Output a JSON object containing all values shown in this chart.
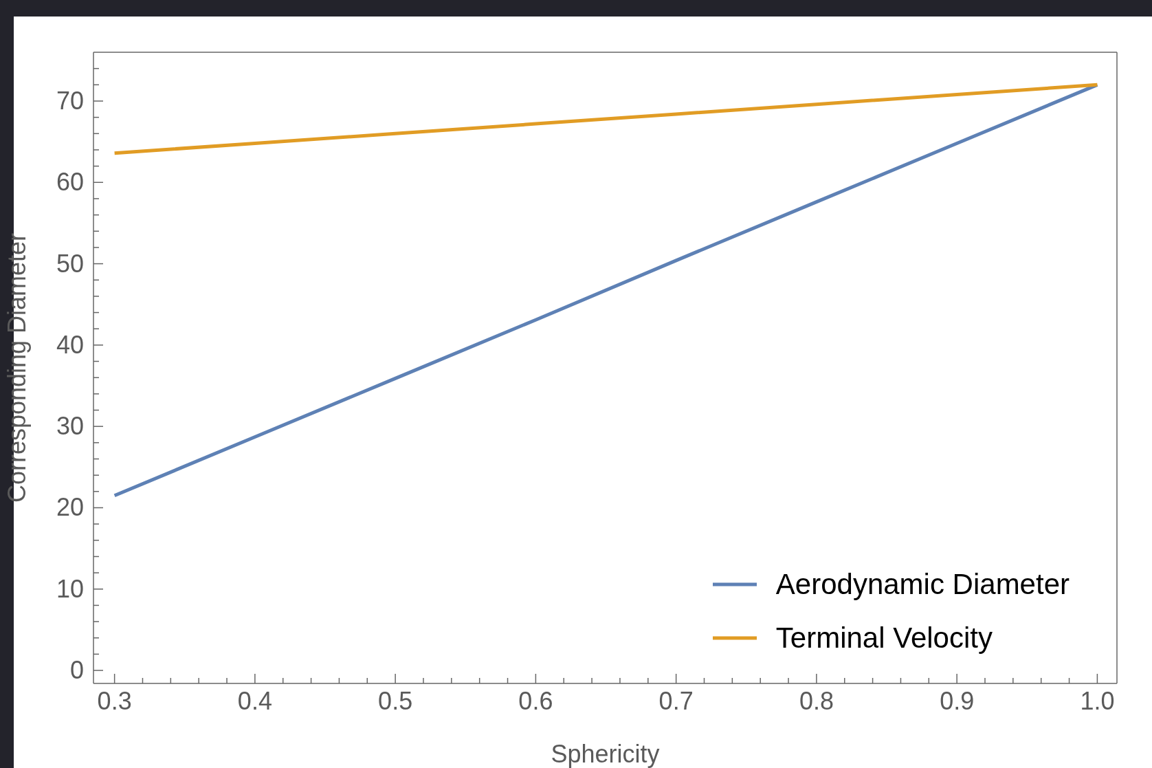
{
  "chart_data": {
    "type": "line",
    "xlabel": "Sphericity",
    "ylabel": "Corresponding Diameter",
    "x": [
      0.3,
      0.4,
      0.5,
      0.6,
      0.7,
      0.8,
      0.9,
      1.0
    ],
    "series": [
      {
        "name": "Aerodynamic Diameter",
        "color": "#5e81b5",
        "values": [
          21.5,
          28.7,
          35.9,
          43.1,
          50.4,
          57.6,
          64.8,
          72.0
        ]
      },
      {
        "name": "Terminal Velocity",
        "color": "#e19c24",
        "values": [
          63.6,
          64.8,
          66.0,
          67.2,
          68.4,
          69.6,
          70.8,
          72.0
        ]
      }
    ],
    "xlim": [
      0.285,
      1.014
    ],
    "ylim": [
      -1.6,
      76
    ],
    "xticks": [
      0.3,
      {
        "value": 0.32,
        "label": null
      },
      {
        "value": 0.34,
        "label": null
      },
      {
        "value": 0.36,
        "label": null
      },
      {
        "value": 0.38,
        "label": null
      },
      0.4,
      {
        "value": 0.42,
        "label": null
      },
      {
        "value": 0.44,
        "label": null
      },
      {
        "value": 0.46,
        "label": null
      },
      {
        "value": 0.48,
        "label": null
      },
      0.5,
      {
        "value": 0.52,
        "label": null
      },
      {
        "value": 0.54,
        "label": null
      },
      {
        "value": 0.56,
        "label": null
      },
      {
        "value": 0.58,
        "label": null
      },
      0.6,
      {
        "value": 0.62,
        "label": null
      },
      {
        "value": 0.64,
        "label": null
      },
      {
        "value": 0.66,
        "label": null
      },
      {
        "value": 0.68,
        "label": null
      },
      0.7,
      {
        "value": 0.72,
        "label": null
      },
      {
        "value": 0.74,
        "label": null
      },
      {
        "value": 0.76,
        "label": null
      },
      {
        "value": 0.78,
        "label": null
      },
      0.8,
      {
        "value": 0.82,
        "label": null
      },
      {
        "value": 0.84,
        "label": null
      },
      {
        "value": 0.86,
        "label": null
      },
      {
        "value": 0.88,
        "label": null
      },
      0.9,
      {
        "value": 0.92,
        "label": null
      },
      {
        "value": 0.94,
        "label": null
      },
      {
        "value": 0.96,
        "label": null
      },
      {
        "value": 0.98,
        "label": null
      },
      {
        "value": 1.0,
        "label": "1.0"
      }
    ],
    "yticks": [
      0,
      {
        "value": 2,
        "label": null
      },
      {
        "value": 4,
        "label": null
      },
      {
        "value": 6,
        "label": null
      },
      {
        "value": 8,
        "label": null
      },
      10,
      {
        "value": 12,
        "label": null
      },
      {
        "value": 14,
        "label": null
      },
      {
        "value": 16,
        "label": null
      },
      {
        "value": 18,
        "label": null
      },
      20,
      {
        "value": 22,
        "label": null
      },
      {
        "value": 24,
        "label": null
      },
      {
        "value": 26,
        "label": null
      },
      {
        "value": 28,
        "label": null
      },
      30,
      {
        "value": 32,
        "label": null
      },
      {
        "value": 34,
        "label": null
      },
      {
        "value": 36,
        "label": null
      },
      {
        "value": 38,
        "label": null
      },
      40,
      {
        "value": 42,
        "label": null
      },
      {
        "value": 44,
        "label": null
      },
      {
        "value": 46,
        "label": null
      },
      {
        "value": 48,
        "label": null
      },
      50,
      {
        "value": 52,
        "label": null
      },
      {
        "value": 54,
        "label": null
      },
      {
        "value": 56,
        "label": null
      },
      {
        "value": 58,
        "label": null
      },
      60,
      {
        "value": 62,
        "label": null
      },
      {
        "value": 64,
        "label": null
      },
      {
        "value": 66,
        "label": null
      },
      {
        "value": 68,
        "label": null
      },
      70,
      {
        "value": 72,
        "label": null
      },
      {
        "value": 74,
        "label": null
      }
    ],
    "grid": false,
    "legend": "bottom right",
    "marker": "none",
    "line_style": "solid"
  }
}
